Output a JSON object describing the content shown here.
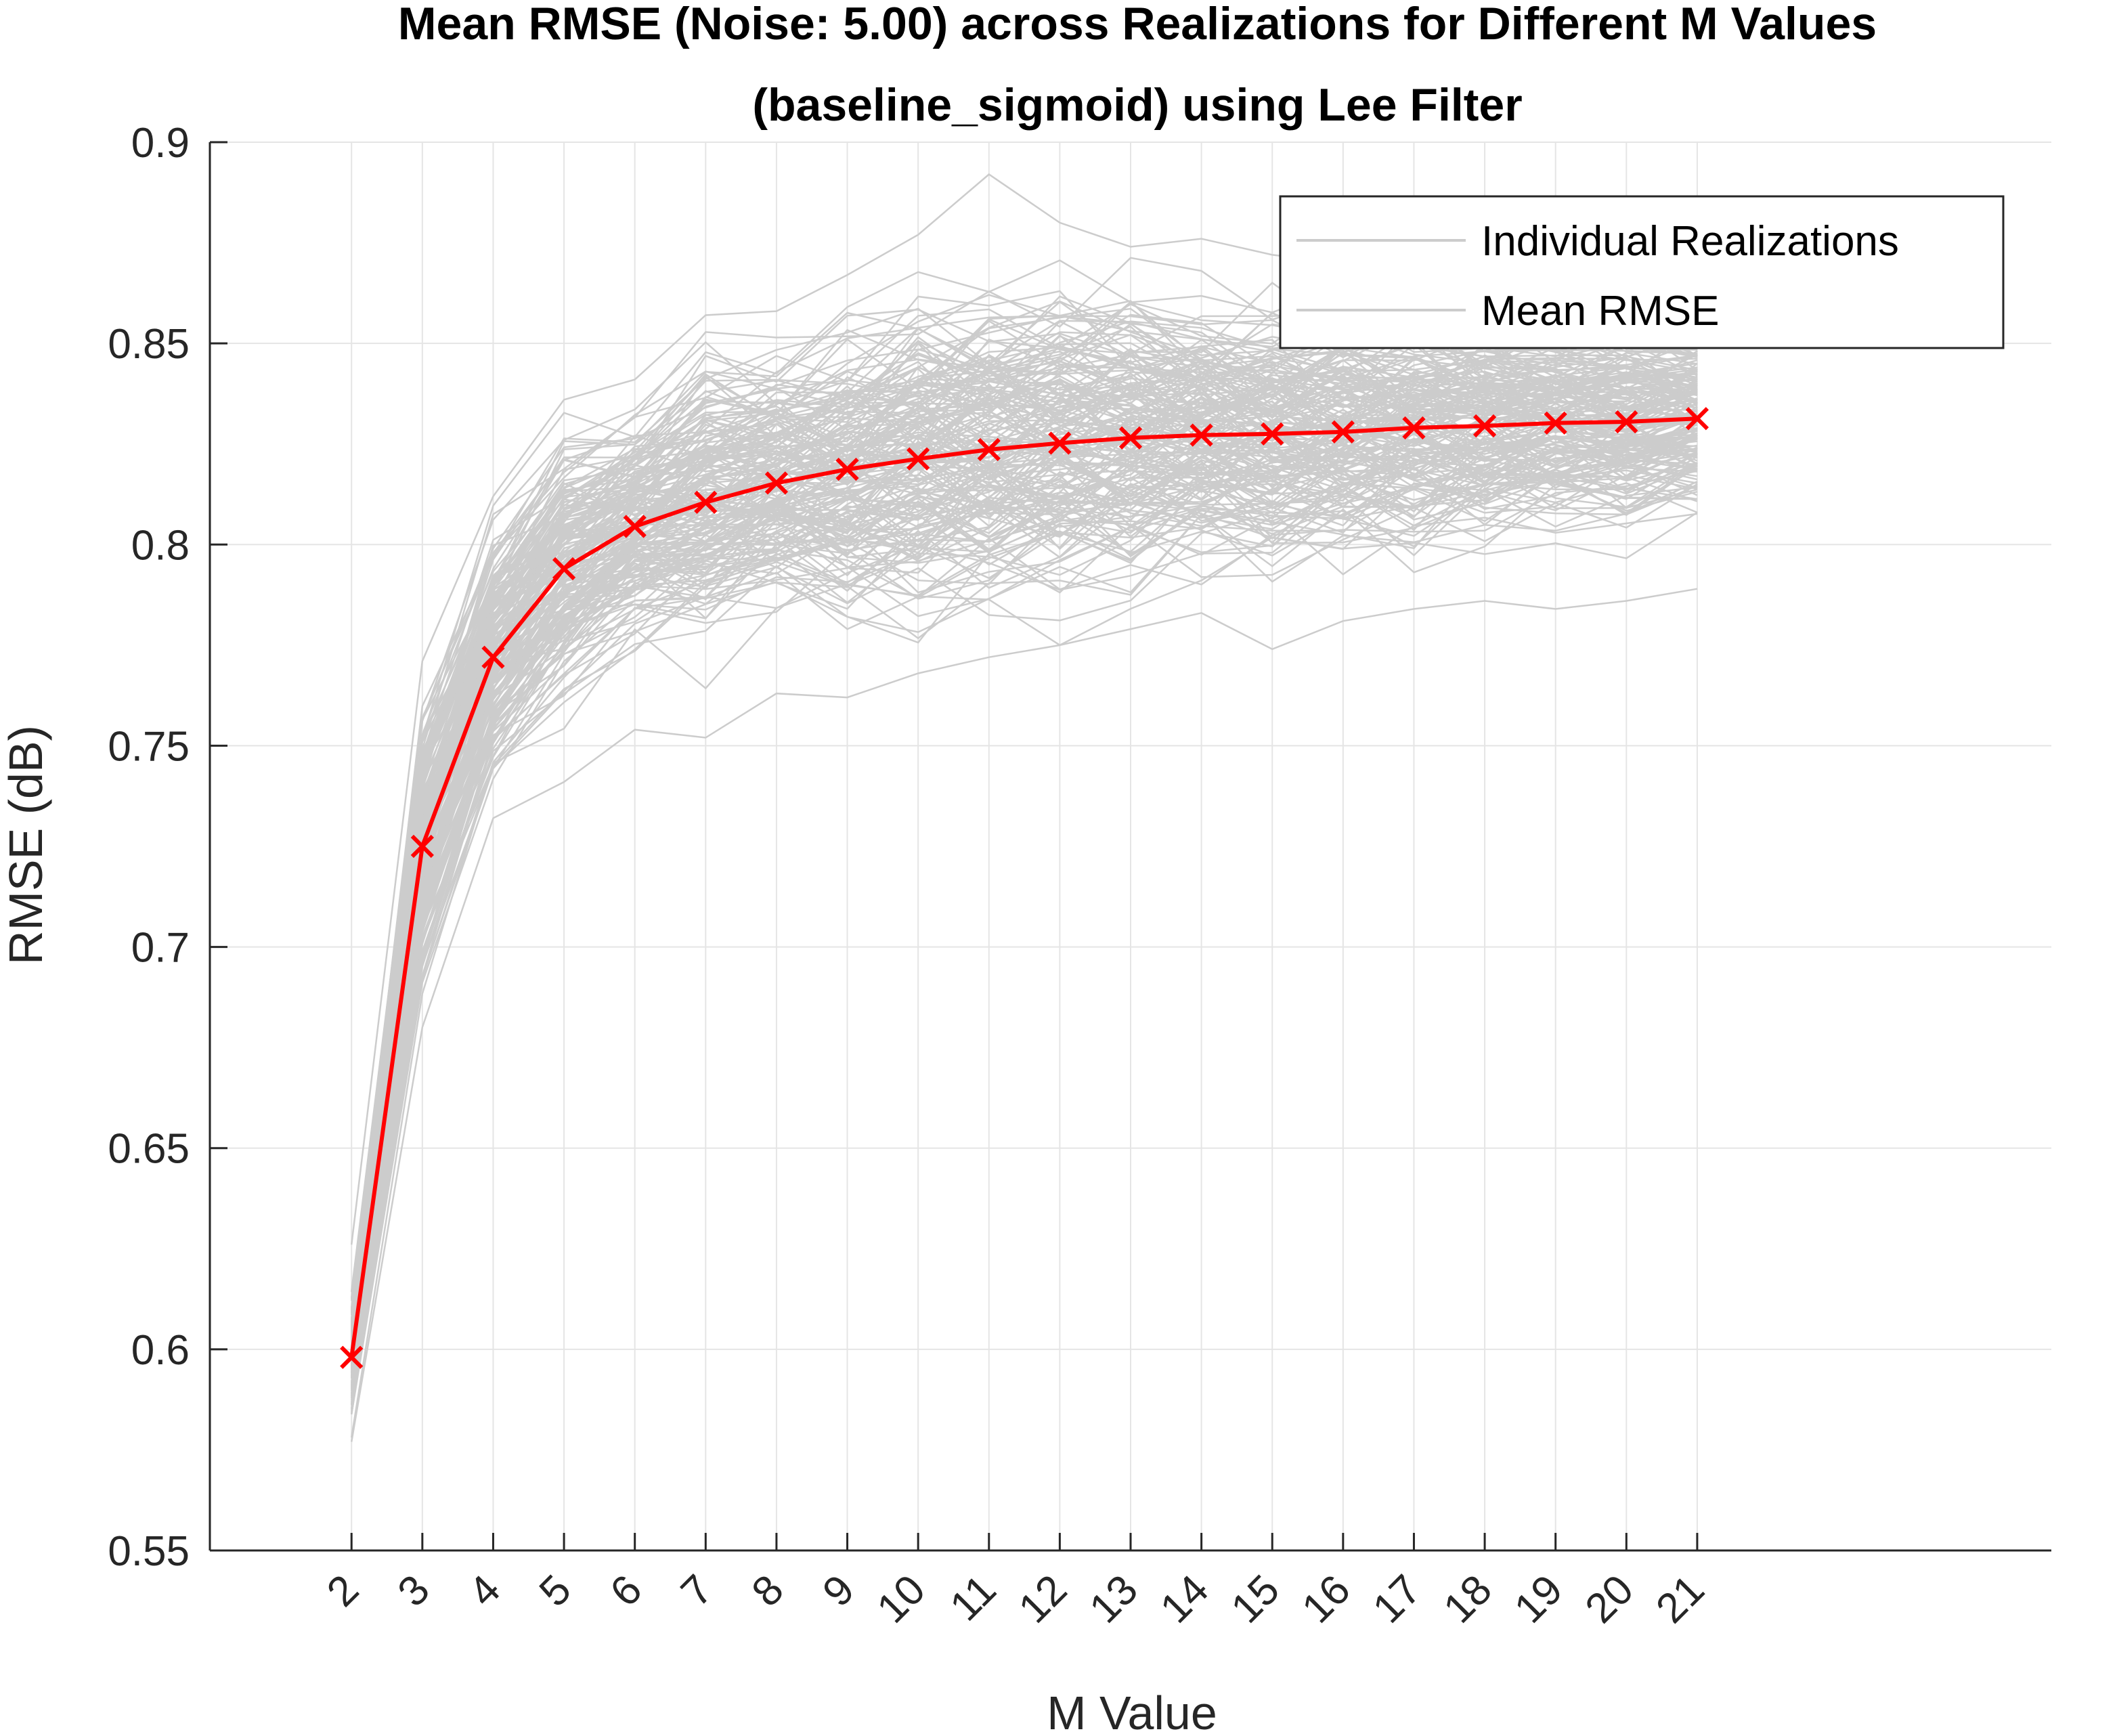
{
  "chart_data": {
    "type": "line",
    "title": "Mean RMSE (Noise: 5.00) across Realizations for Different M Values",
    "subtitle": "(baseline_sigmoid) using Lee Filter",
    "xlabel": "M Value",
    "ylabel": "RMSE (dB)",
    "xlim": [
      0,
      26
    ],
    "ylim": [
      0.55,
      0.9
    ],
    "x": [
      2,
      3,
      4,
      5,
      6,
      7,
      8,
      9,
      10,
      11,
      12,
      13,
      14,
      15,
      16,
      17,
      18,
      19,
      20,
      21
    ],
    "x_tick_labels": [
      "2",
      "3",
      "4",
      "5",
      "6",
      "7",
      "8",
      "9",
      "10",
      "11",
      "12",
      "13",
      "14",
      "15",
      "16",
      "17",
      "18",
      "19",
      "20",
      "21"
    ],
    "y_ticks": [
      0.55,
      0.6,
      0.65,
      0.7,
      0.75,
      0.8,
      0.85,
      0.9
    ],
    "y_tick_labels": [
      "0.55",
      "0.6",
      "0.65",
      "0.7",
      "0.75",
      "0.8",
      "0.85",
      "0.9"
    ],
    "grid": true,
    "legend_position": "top-right",
    "series": [
      {
        "name": "Mean RMSE",
        "color": "#ff0000",
        "marker": "x",
        "values": [
          0.598,
          0.725,
          0.772,
          0.794,
          0.8045,
          0.8105,
          0.8153,
          0.8187,
          0.8213,
          0.8236,
          0.8252,
          0.8265,
          0.8272,
          0.8275,
          0.828,
          0.829,
          0.8295,
          0.8302,
          0.8305,
          0.8313
        ]
      }
    ],
    "individual_realizations": {
      "name": "Individual Realizations",
      "color": "#cccccc",
      "count": 200,
      "envelope_min": [
        0.577,
        0.68,
        0.732,
        0.741,
        0.754,
        0.752,
        0.763,
        0.762,
        0.768,
        0.772,
        0.775,
        0.779,
        0.783,
        0.774,
        0.781,
        0.784,
        0.786,
        0.784,
        0.786,
        0.789
      ],
      "envelope_max": [
        0.626,
        0.771,
        0.812,
        0.836,
        0.841,
        0.857,
        0.858,
        0.867,
        0.877,
        0.892,
        0.88,
        0.874,
        0.876,
        0.872,
        0.87,
        0.872,
        0.866,
        0.865,
        0.865,
        0.862
      ]
    },
    "legend": [
      "Individual Realizations",
      "Mean RMSE"
    ]
  }
}
